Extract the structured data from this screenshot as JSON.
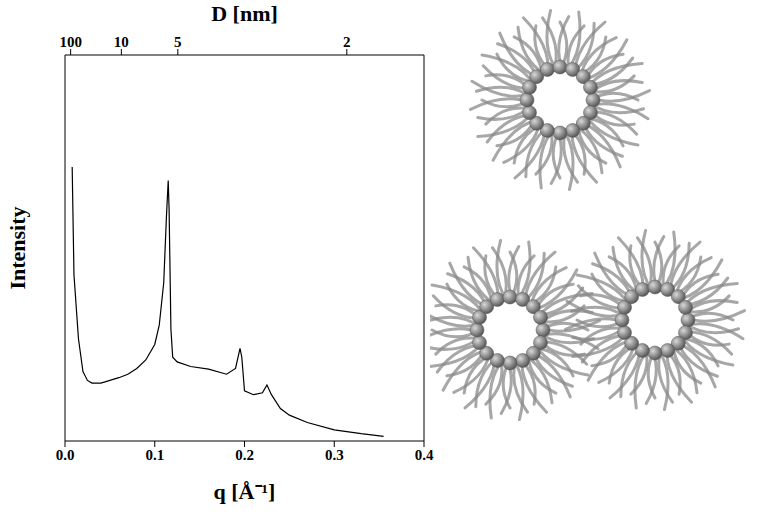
{
  "chart_data": {
    "type": "line",
    "x_label": "q [Å⁻¹]",
    "x2_label": "D [nm]",
    "y_label": "Intensity",
    "xlim": [
      0,
      0.4
    ],
    "xticks": [
      {
        "value": 0,
        "label": "0.0"
      },
      {
        "value": 0.1,
        "label": "0.1"
      },
      {
        "value": 0.2,
        "label": "0.2"
      },
      {
        "value": 0.3,
        "label": "0.3"
      },
      {
        "value": 0.4,
        "label": "0.4"
      }
    ],
    "x2ticks": [
      {
        "value": 0.00628,
        "label": "100"
      },
      {
        "value": 0.0628,
        "label": "10"
      },
      {
        "value": 0.1257,
        "label": "5"
      },
      {
        "value": 0.314,
        "label": "2"
      }
    ],
    "ylim": [
      0,
      100
    ],
    "tick_labels": "x",
    "grid": false,
    "series": [
      {
        "name": "Intensity",
        "color": "#000000",
        "x": [
          0.008,
          0.01,
          0.015,
          0.02,
          0.025,
          0.03,
          0.04,
          0.05,
          0.06,
          0.07,
          0.08,
          0.09,
          0.1,
          0.105,
          0.11,
          0.113,
          0.115,
          0.116,
          0.118,
          0.12,
          0.125,
          0.14,
          0.16,
          0.18,
          0.19,
          0.195,
          0.197,
          0.2,
          0.21,
          0.22,
          0.225,
          0.23,
          0.24,
          0.25,
          0.27,
          0.3,
          0.33,
          0.355
        ],
        "values": [
          71,
          43,
          26.5,
          18,
          15.7,
          15,
          15,
          15.7,
          16.4,
          17.3,
          18.8,
          21,
          25,
          30,
          41,
          58,
          67.5,
          60,
          29,
          21.7,
          20.5,
          19.3,
          18.6,
          17.3,
          18.8,
          24,
          21.7,
          13,
          12,
          12.5,
          14.5,
          12,
          8.4,
          6.7,
          4.8,
          2.9,
          1.9,
          1.2
        ]
      }
    ]
  }
}
